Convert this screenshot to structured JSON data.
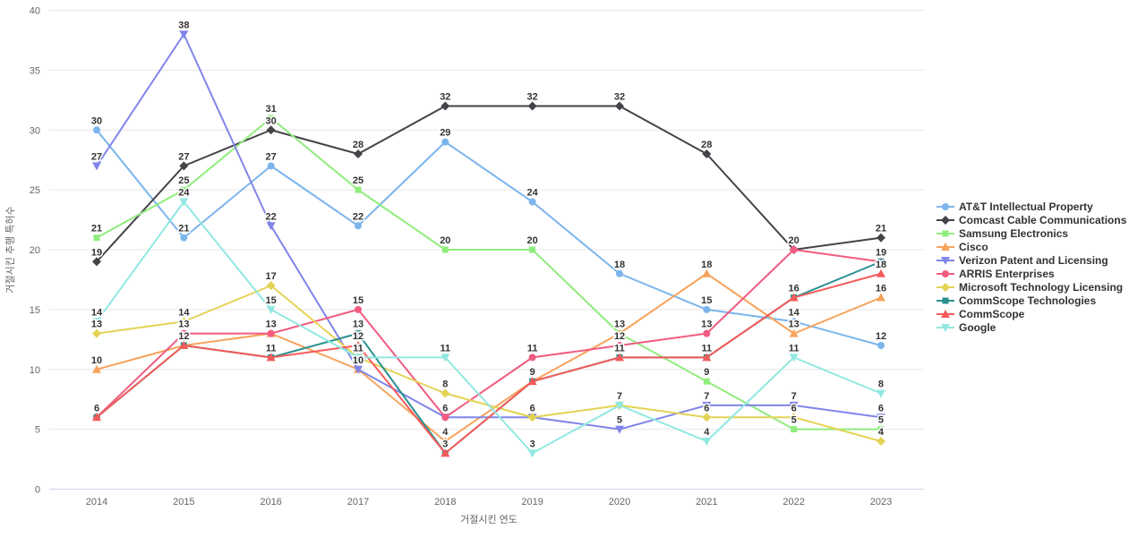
{
  "chart_data": {
    "type": "line",
    "title": "",
    "xlabel": "거절시킨 연도",
    "ylabel": "거절시킨 추행 특허수",
    "x": [
      2014,
      2015,
      2016,
      2017,
      2018,
      2019,
      2020,
      2021,
      2022,
      2023
    ],
    "ylim": [
      0,
      40
    ],
    "ytick_step": 5,
    "grid": true,
    "legend_position": "right",
    "data_labels": true,
    "colors": {
      "grid": "#e6e6e6",
      "axis_line": "#ccd6eb",
      "tick_text": "#666666",
      "label_text": "#333333"
    },
    "series": [
      {
        "name": "AT&T Intellectual Property",
        "color": "#7cb5ec",
        "symbol": "circle",
        "values": [
          30,
          21,
          27,
          22,
          29,
          24,
          18,
          15,
          14,
          12
        ]
      },
      {
        "name": "Comcast Cable Communications",
        "color": "#434348",
        "symbol": "diamond",
        "values": [
          19,
          27,
          30,
          28,
          32,
          32,
          32,
          28,
          20,
          21
        ]
      },
      {
        "name": "Samsung Electronics",
        "color": "#90ed7d",
        "symbol": "square",
        "values": [
          21,
          25,
          31,
          25,
          20,
          20,
          13,
          9,
          5,
          5
        ]
      },
      {
        "name": "Cisco",
        "color": "#f7a35c",
        "symbol": "triangle",
        "values": [
          10,
          12,
          13,
          10,
          4,
          9,
          13,
          18,
          13,
          16
        ]
      },
      {
        "name": "Verizon Patent and Licensing",
        "color": "#8085e9",
        "symbol": "triangle-down",
        "values": [
          27,
          38,
          22,
          10,
          6,
          6,
          5,
          7,
          7,
          6
        ]
      },
      {
        "name": "ARRIS Enterprises",
        "color": "#f15c80",
        "symbol": "circle",
        "values": [
          6,
          13,
          13,
          15,
          6,
          11,
          12,
          13,
          20,
          19
        ]
      },
      {
        "name": "Microsoft Technology Licensing",
        "color": "#e4d354",
        "symbol": "diamond",
        "values": [
          13,
          14,
          17,
          11,
          8,
          6,
          7,
          6,
          6,
          4
        ]
      },
      {
        "name": "CommScope Technologies",
        "color": "#2b908f",
        "symbol": "square",
        "values": [
          6,
          12,
          11,
          13,
          3,
          9,
          11,
          11,
          16,
          19
        ]
      },
      {
        "name": "CommScope",
        "color": "#f45b5b",
        "symbol": "triangle",
        "values": [
          6,
          12,
          11,
          12,
          3,
          9,
          11,
          11,
          16,
          18
        ]
      },
      {
        "name": "Google",
        "color": "#91e8e1",
        "symbol": "triangle-down",
        "values": [
          14,
          24,
          15,
          11,
          11,
          3,
          7,
          4,
          11,
          8
        ]
      }
    ]
  }
}
